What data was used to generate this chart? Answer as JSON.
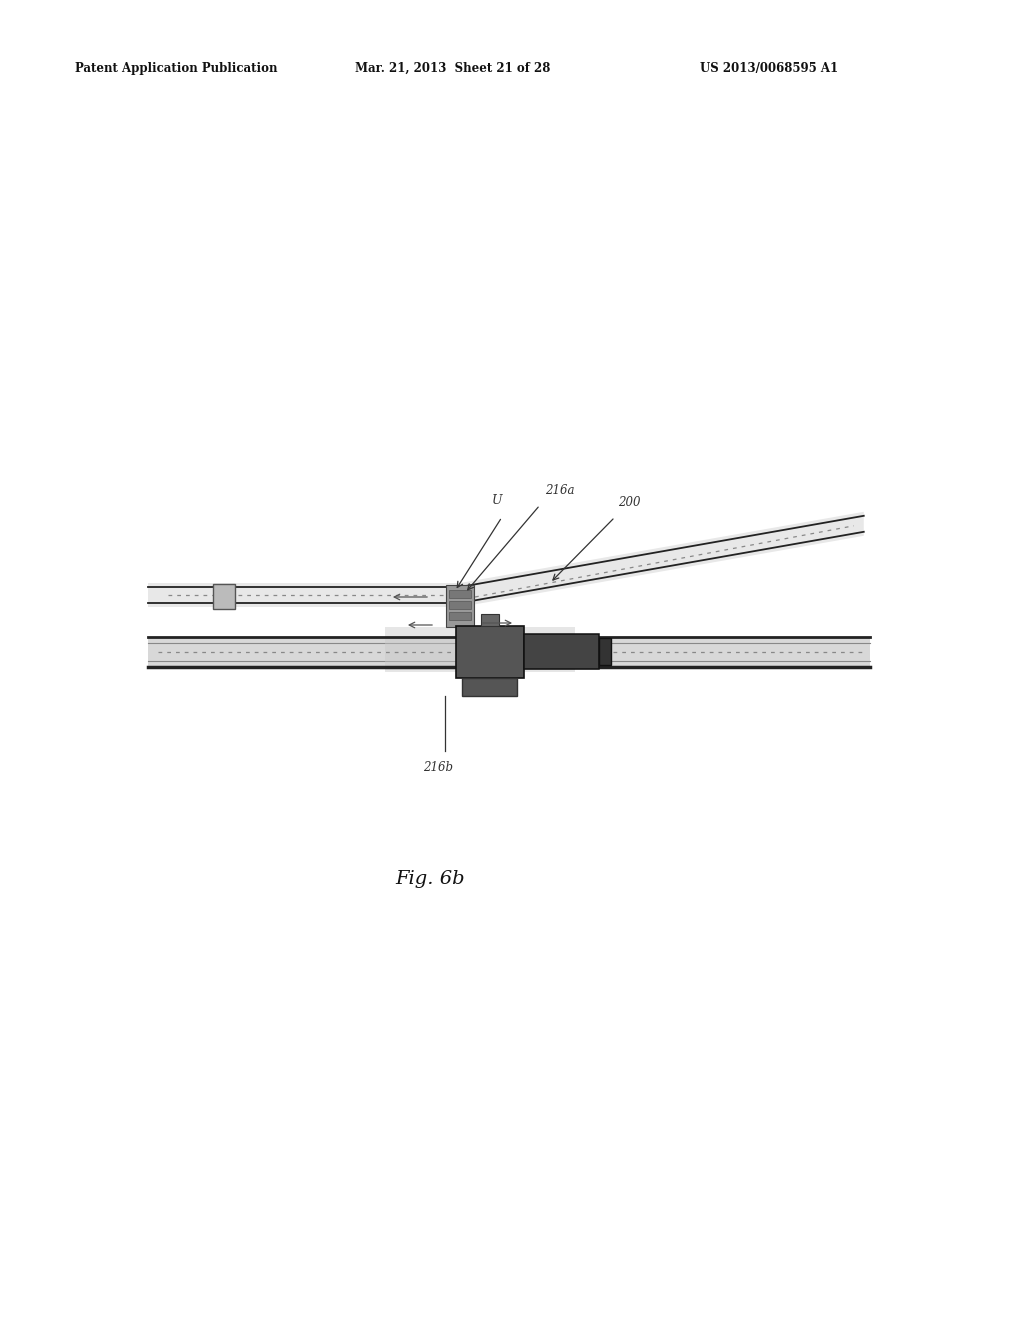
{
  "page_width": 10.24,
  "page_height": 13.2,
  "bg_color": "#ffffff",
  "header_line1": "Patent Application Publication",
  "header_line2": "Mar. 21, 2013  Sheet 21 of 28",
  "header_line3": "US 2013/0068595 A1",
  "fig_label": "Fig. 6b",
  "label_216a": "216a",
  "label_200": "200",
  "label_216b": "216b",
  "label_U": "U",
  "dark": "#222222",
  "mid_gray": "#666666",
  "light_gray": "#aaaaaa",
  "very_light": "#cccccc",
  "dot_color": "#888888"
}
